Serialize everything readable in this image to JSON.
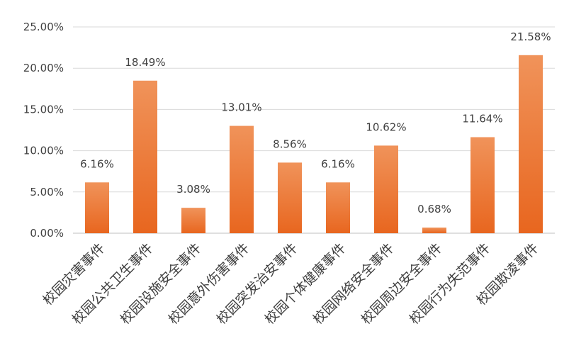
{
  "chart_data": {
    "type": "bar",
    "categories": [
      "校园灾害事件",
      "校园公共卫生事件",
      "校园设施安全事件",
      "校园意外伤害事件",
      "校园突发治安事件",
      "校园个体健康事件",
      "校园网络安全事件",
      "校园周边安全事件",
      "校园行为失范事件",
      "校园欺凌事件"
    ],
    "values": [
      6.16,
      18.49,
      3.08,
      13.01,
      8.56,
      6.16,
      10.62,
      0.68,
      11.64,
      21.58
    ],
    "data_labels": [
      "6.16%",
      "18.49%",
      "3.08%",
      "13.01%",
      "8.56%",
      "6.16%",
      "10.62%",
      "0.68%",
      "11.64%",
      "21.58%"
    ],
    "y_ticks": [
      0,
      5,
      10,
      15,
      20,
      25
    ],
    "y_tick_labels": [
      "0.00%",
      "5.00%",
      "10.00%",
      "15.00%",
      "20.00%",
      "25.00%"
    ],
    "ylim": [
      0,
      25
    ],
    "title": "",
    "xlabel": "",
    "ylabel": "",
    "grid": true,
    "legend": "none",
    "colors": {
      "bar_top": "#f0935a",
      "bar_bottom": "#e8661f",
      "gridline": "#d9d9d9",
      "text": "#404040"
    }
  }
}
